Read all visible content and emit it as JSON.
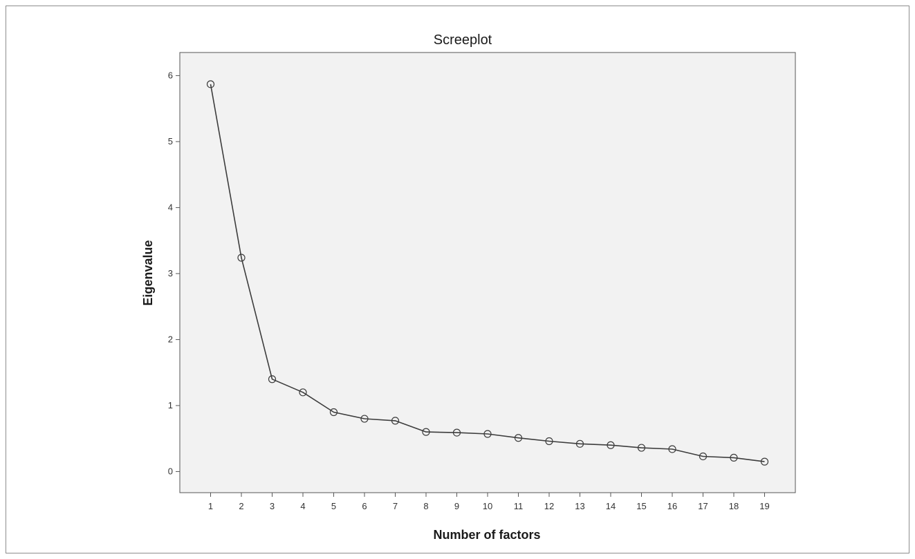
{
  "chart_data": {
    "type": "line",
    "title": "Screeplot",
    "xlabel": "Number of factors",
    "ylabel": "Eigenvalue",
    "x": [
      1,
      2,
      3,
      4,
      5,
      6,
      7,
      8,
      9,
      10,
      11,
      12,
      13,
      14,
      15,
      16,
      17,
      18,
      19
    ],
    "y": [
      5.87,
      3.24,
      1.4,
      1.2,
      0.9,
      0.8,
      0.77,
      0.6,
      0.59,
      0.57,
      0.51,
      0.46,
      0.42,
      0.4,
      0.36,
      0.34,
      0.23,
      0.21,
      0.15
    ],
    "xlim": [
      0,
      20
    ],
    "ylim": [
      -0.32,
      6.35
    ],
    "x_ticks": [
      "1",
      "2",
      "3",
      "4",
      "5",
      "6",
      "7",
      "8",
      "9",
      "10",
      "11",
      "12",
      "13",
      "14",
      "15",
      "16",
      "17",
      "18",
      "19"
    ],
    "y_ticks": [
      "0",
      "1",
      "2",
      "3",
      "4",
      "5",
      "6"
    ],
    "grid": false,
    "legend": "none",
    "colors": {
      "plot_background": "#f2f2f2",
      "line": "#3c3c3c",
      "marker": "#3c3c3c",
      "axis": "#555555"
    },
    "marker": "open-circle"
  }
}
